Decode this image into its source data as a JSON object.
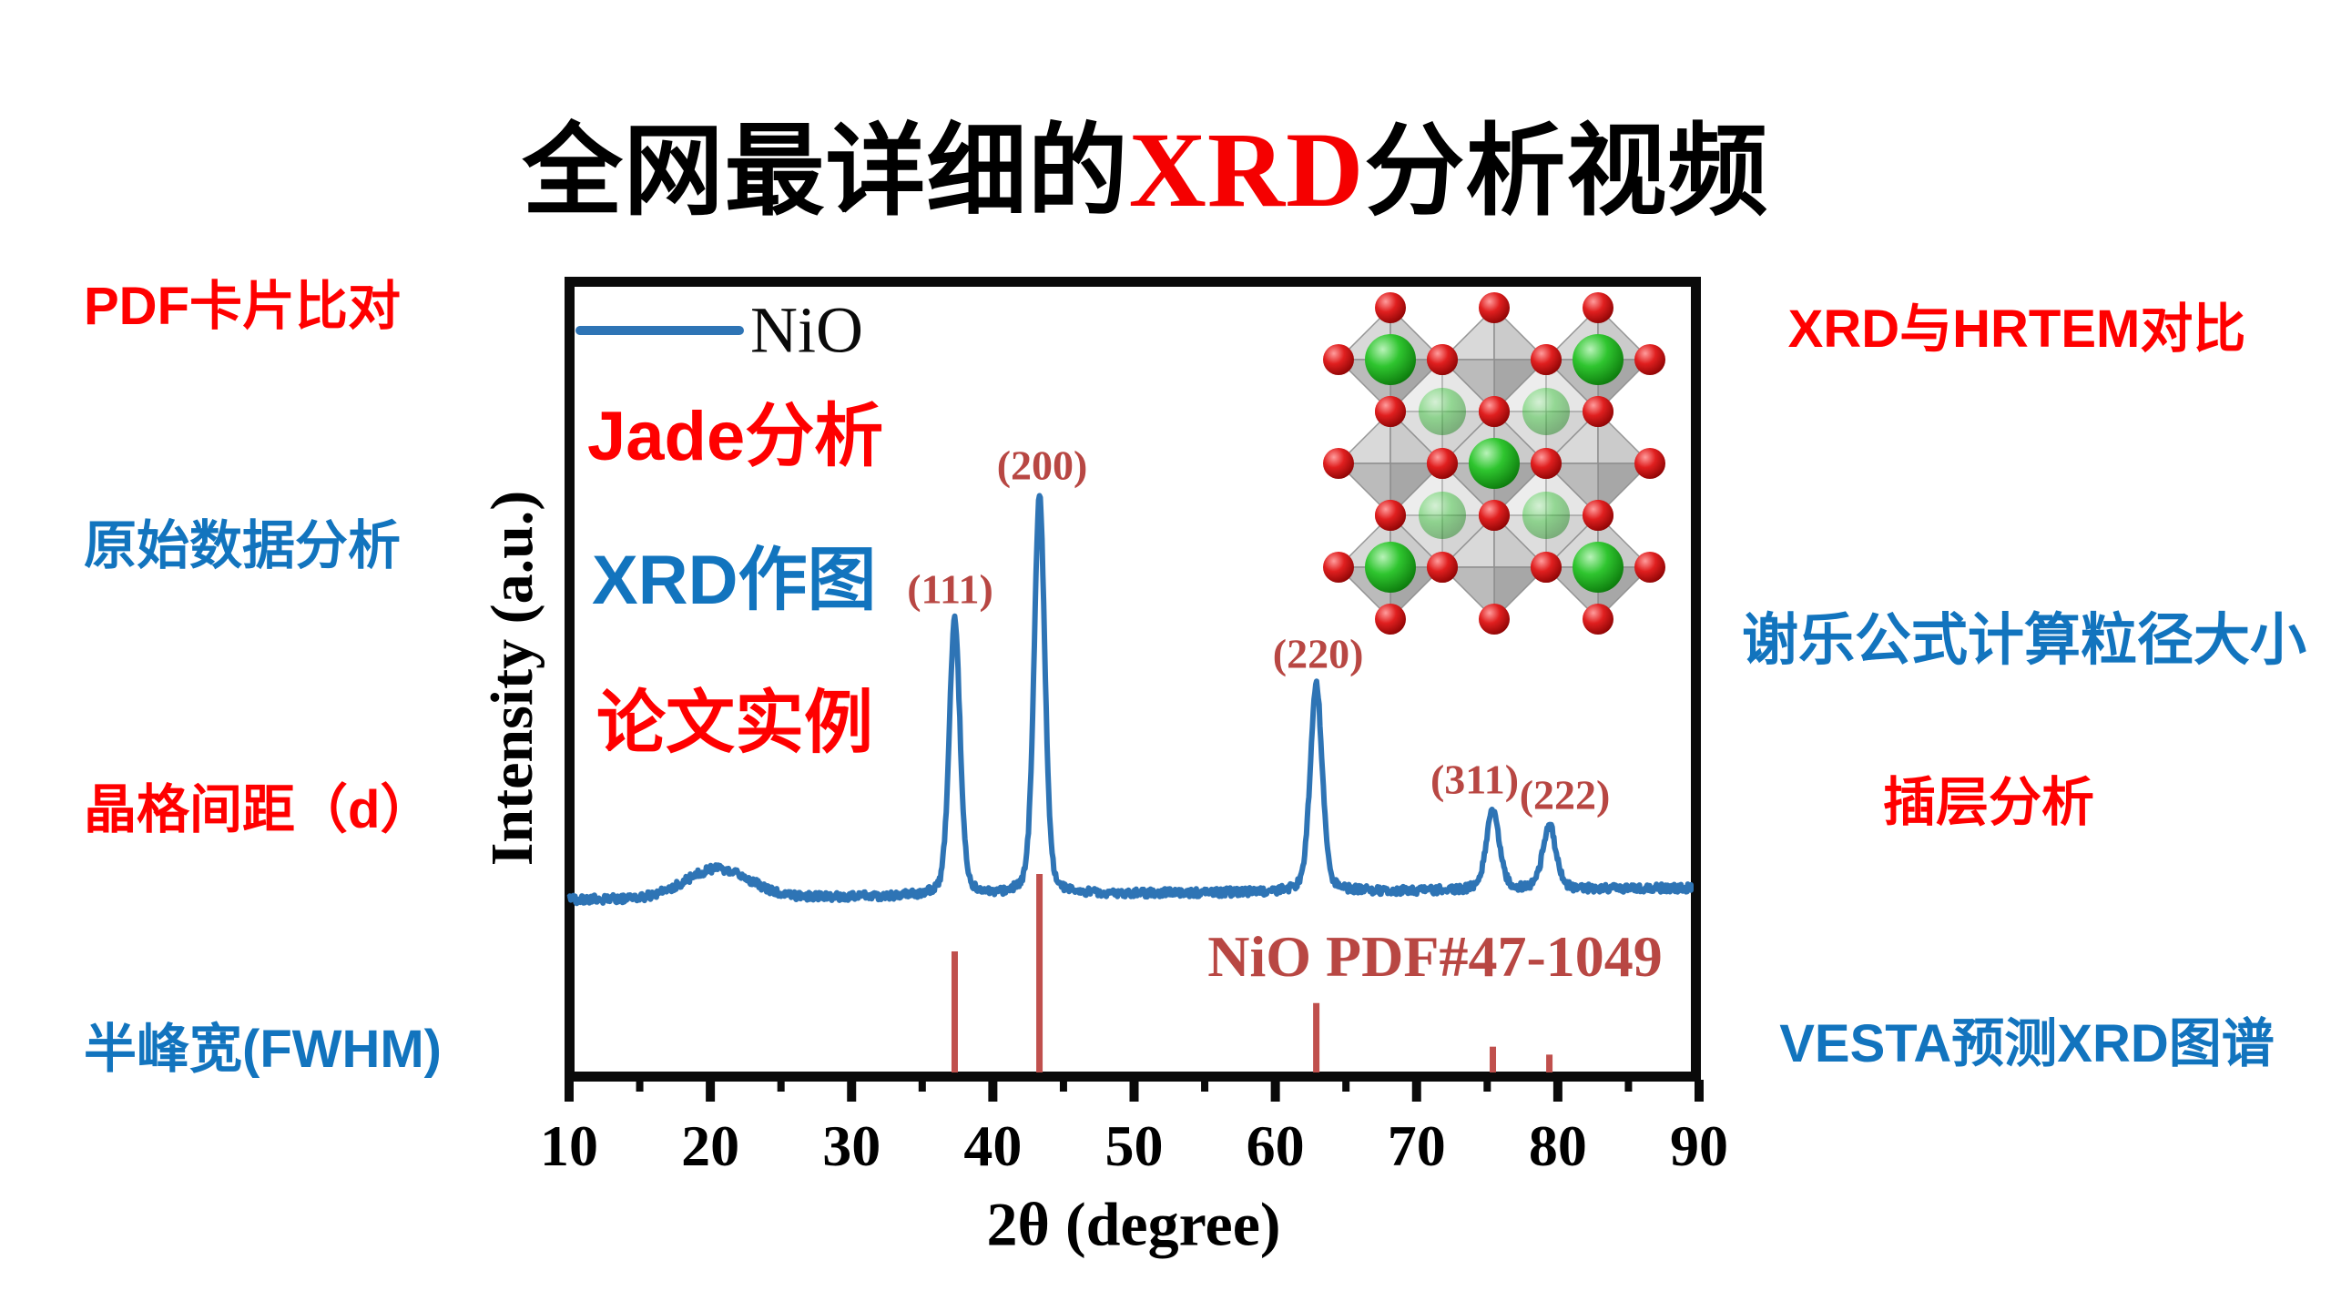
{
  "title": {
    "prefix": "全网最详细的",
    "highlight": "XRD",
    "suffix": "分析视频",
    "highlight_color": "#F50000",
    "text_color": "#000000"
  },
  "side_labels": {
    "left": [
      {
        "text": "PDF卡片比对",
        "color": "#FF0000"
      },
      {
        "text": "原始数据分析",
        "color": "#1274BE"
      },
      {
        "text": "晶格间距（d）",
        "color": "#FF0000"
      },
      {
        "text": "半峰宽(FWHM)",
        "color": "#1274BE"
      }
    ],
    "right": [
      {
        "text": "XRD与HRTEM对比",
        "color": "#FF0000"
      },
      {
        "text": "谢乐公式计算粒径大小",
        "color": "#1274BE"
      },
      {
        "text": "插层分析",
        "color": "#FF0000"
      },
      {
        "text": "VESTA预测XRD图谱",
        "color": "#1274BE"
      }
    ]
  },
  "plot_annotations": {
    "jade": {
      "text": "Jade分析",
      "color": "#FF0000"
    },
    "xrd_plot": {
      "text": "XRD作图",
      "color": "#1274BE"
    },
    "paper_example": {
      "text": "论文实例",
      "color": "#FF0000"
    }
  },
  "colors": {
    "curve": "#2E74B5",
    "frame": "#0a0a0a",
    "reference_sticks": "#C0504D",
    "reference_text": "#B84743",
    "peak_label_text": "#B84743"
  },
  "crystal": {
    "name": "NiO rock-salt structure",
    "ni_color": "#2fc52f",
    "o_color": "#e01f1f",
    "octahedra_color": "#bdbdbd"
  },
  "chart_data": {
    "type": "line",
    "title": "",
    "xlabel": "2θ (degree)",
    "ylabel": "Intensity (a.u.)",
    "x_range": [
      10,
      90
    ],
    "x_major_ticks": [
      10,
      20,
      30,
      40,
      50,
      60,
      70,
      80,
      90
    ],
    "x_minor_tick_step": 5,
    "y_ticks": "none (arbitrary units)",
    "grid": false,
    "legend": {
      "position": "top-left",
      "entries": [
        {
          "label": "NiO",
          "color": "#2E74B5"
        }
      ]
    },
    "series": [
      {
        "name": "NiO",
        "color": "#2E74B5",
        "background": {
          "baseline_intensity": 2,
          "amorphous_hump_center": 20.5,
          "amorphous_hump_height": 7.3,
          "amorphous_hump_width_deg": 3.2
        },
        "peaks": [
          {
            "hkl": "(111)",
            "two_theta": 37.3,
            "intensity": 69,
            "fwhm_deg": 0.9
          },
          {
            "hkl": "(200)",
            "two_theta": 43.3,
            "intensity": 100,
            "fwhm_deg": 0.9
          },
          {
            "hkl": "(220)",
            "two_theta": 62.9,
            "intensity": 52,
            "fwhm_deg": 1.0
          },
          {
            "hkl": "(311)",
            "two_theta": 75.4,
            "intensity": 20,
            "fwhm_deg": 1.1
          },
          {
            "hkl": "(222)",
            "two_theta": 79.4,
            "intensity": 16,
            "fwhm_deg": 1.1
          }
        ]
      }
    ],
    "reference_pattern": {
      "label": "NiO PDF#47-1049",
      "text_color": "#B84743",
      "stick_color": "#C0504D",
      "sticks": [
        {
          "hkl": "(111)",
          "two_theta": 37.3,
          "intensity": 61
        },
        {
          "hkl": "(200)",
          "two_theta": 43.3,
          "intensity": 100
        },
        {
          "hkl": "(220)",
          "two_theta": 62.9,
          "intensity": 35
        },
        {
          "hkl": "(311)",
          "two_theta": 75.4,
          "intensity": 13
        },
        {
          "hkl": "(222)",
          "two_theta": 79.4,
          "intensity": 9
        }
      ]
    }
  }
}
